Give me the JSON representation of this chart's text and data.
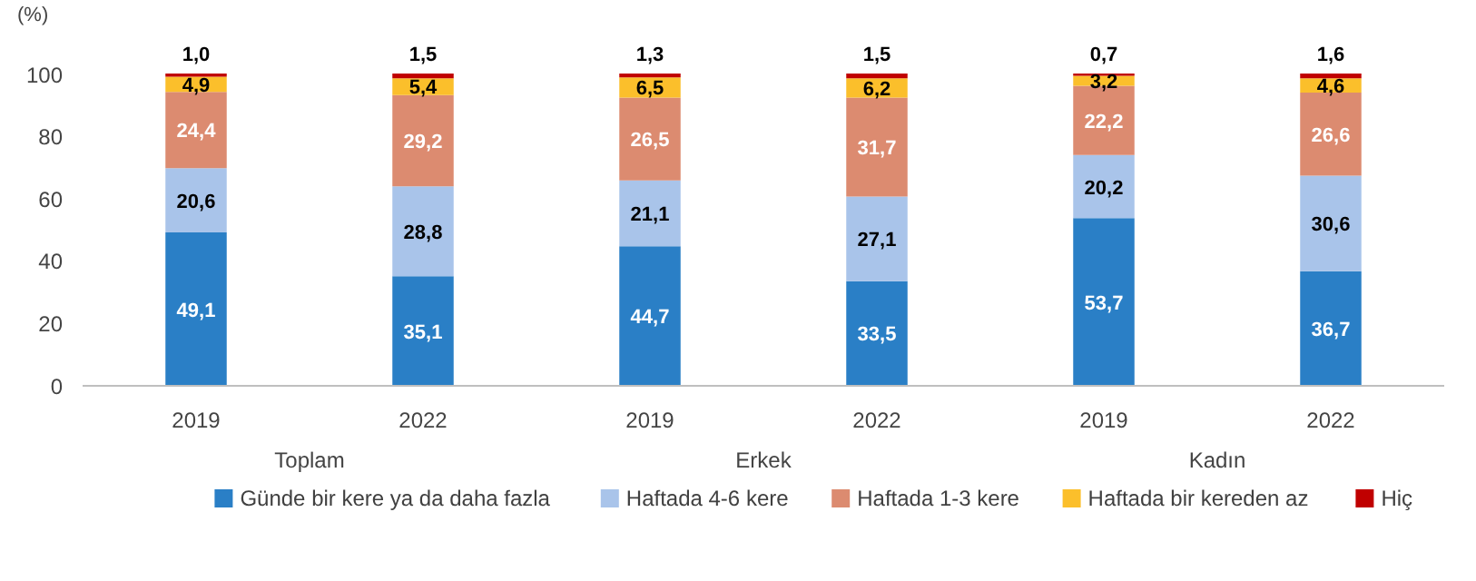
{
  "chart_data": {
    "type": "bar",
    "stacked": true,
    "ylabel": "(%)",
    "categories": [
      "2019",
      "2022",
      "2019",
      "2022",
      "2019",
      "2022"
    ],
    "annotations": [
      "Toplam",
      "Erkek",
      "Kadın"
    ],
    "ylim": [
      0,
      100
    ],
    "yticks": [
      0,
      20,
      40,
      60,
      80,
      100
    ],
    "grid": false,
    "legend": "bottom",
    "series": [
      {
        "name": "Günde bir kere ya da daha fazla",
        "color": "#2a7fc6",
        "values": [
          49.1,
          35.1,
          44.7,
          33.5,
          53.7,
          36.7
        ],
        "value_labels": [
          "49,1",
          "35,1",
          "44,7",
          "33,5",
          "53,7",
          "36,7"
        ]
      },
      {
        "name": "Haftada 4-6 kere",
        "color": "#a9c4ea",
        "values": [
          20.6,
          28.8,
          21.1,
          27.1,
          20.2,
          30.6
        ],
        "value_labels": [
          "20,6",
          "28,8",
          "21,1",
          "27,1",
          "20,2",
          "30,6"
        ]
      },
      {
        "name": "Haftada 1-3 kere",
        "color": "#dc8b70",
        "values": [
          24.4,
          29.2,
          26.5,
          31.7,
          22.2,
          26.6
        ],
        "value_labels": [
          "24,4",
          "29,2",
          "26,5",
          "31,7",
          "22,2",
          "26,6"
        ]
      },
      {
        "name": "Haftada bir kereden az",
        "color": "#fbbf2b",
        "values": [
          4.9,
          5.4,
          6.5,
          6.2,
          3.2,
          4.6
        ],
        "value_labels": [
          "4,9",
          "5,4",
          "6,5",
          "6,2",
          "3,2",
          "4,6"
        ]
      },
      {
        "name": "Hiç",
        "color": "#c00000",
        "values": [
          1.0,
          1.5,
          1.3,
          1.5,
          0.7,
          1.6
        ],
        "value_labels": [
          "1,0",
          "1,5",
          "1,3",
          "1,5",
          "0,7",
          "1,6"
        ]
      }
    ]
  }
}
